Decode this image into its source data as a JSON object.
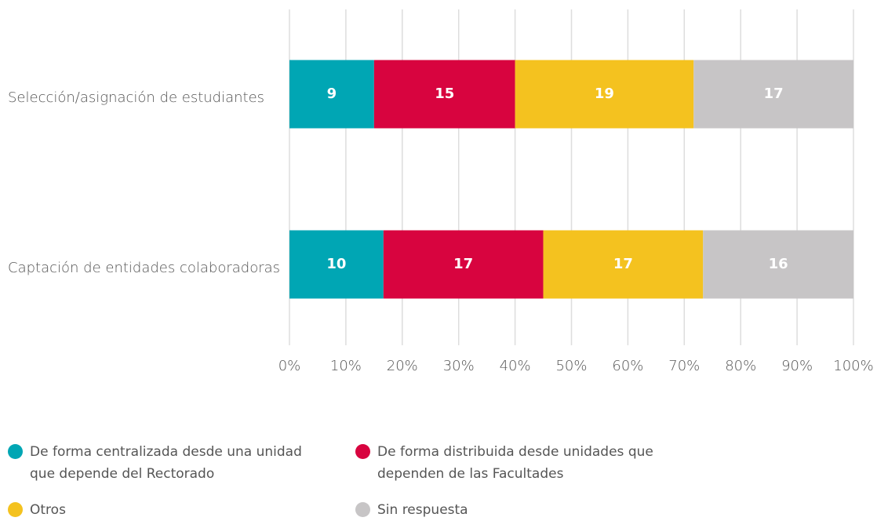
{
  "chart_data": {
    "type": "bar",
    "orientation": "horizontal",
    "stacked": true,
    "percent": true,
    "categories": [
      "Selección/asignación de estudiantes",
      "Captación de entidades colaboradoras"
    ],
    "series": [
      {
        "name": "De forma centralizada desde una unidad que depende del Rectorado",
        "color": "#00a6b4",
        "values": [
          9,
          10
        ]
      },
      {
        "name": "De forma distribuida desde unidades que dependen de las Facultades",
        "color": "#d8043f",
        "values": [
          15,
          17
        ]
      },
      {
        "name": "Otros",
        "color": "#f4c21f",
        "values": [
          19,
          17
        ]
      },
      {
        "name": "Sin respuesta",
        "color": "#c7c5c6",
        "values": [
          17,
          16
        ]
      }
    ],
    "xlim": [
      0,
      100
    ],
    "xticks": [
      {
        "value": 0,
        "label": "0%"
      },
      {
        "value": 10,
        "label": "10%"
      },
      {
        "value": 20,
        "label": "20%"
      },
      {
        "value": 30,
        "label": "30%"
      },
      {
        "value": 40,
        "label": "40%"
      },
      {
        "value": 50,
        "label": "50%"
      },
      {
        "value": 60,
        "label": "60%"
      },
      {
        "value": 70,
        "label": "70%"
      },
      {
        "value": 80,
        "label": "80%"
      },
      {
        "value": 90,
        "label": "90%"
      },
      {
        "value": 100,
        "label": "100%"
      }
    ],
    "grid": true
  }
}
